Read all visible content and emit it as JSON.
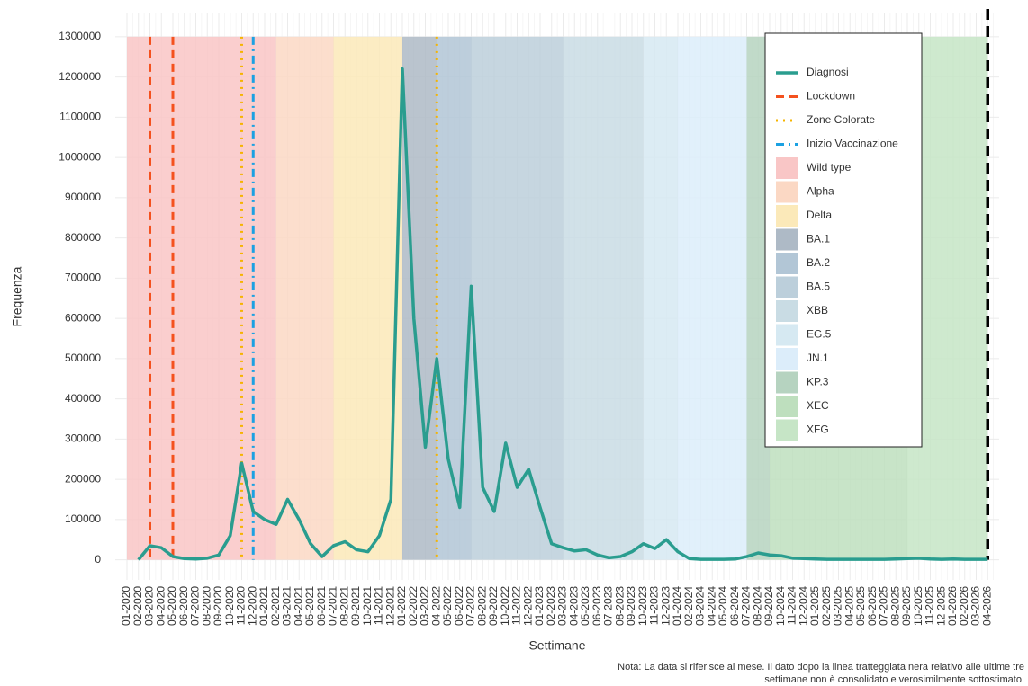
{
  "chart_data": {
    "type": "line",
    "ylabel": "Frequenza",
    "xlabel": "Settimane",
    "note": [
      "Nota: La data si riferisce al mese. Il dato dopo la linea tratteggiata nera relativo alle ultime tre",
      "settimane non è consolidato e verosimilmente sottostimato."
    ],
    "categories": [
      "01-2020",
      "02-2020",
      "03-2020",
      "04-2020",
      "05-2020",
      "06-2020",
      "07-2020",
      "08-2020",
      "09-2020",
      "10-2020",
      "11-2020",
      "12-2020",
      "01-2021",
      "02-2021",
      "03-2021",
      "04-2021",
      "05-2021",
      "06-2021",
      "07-2021",
      "08-2021",
      "09-2021",
      "10-2021",
      "11-2021",
      "12-2021",
      "01-2022",
      "02-2022",
      "03-2022",
      "04-2022",
      "05-2022",
      "06-2022",
      "07-2022",
      "08-2022",
      "09-2022",
      "10-2022",
      "11-2022",
      "12-2022",
      "01-2023",
      "02-2023",
      "03-2023",
      "04-2023",
      "05-2023",
      "06-2023",
      "07-2023",
      "08-2023",
      "09-2023",
      "10-2023",
      "11-2023",
      "12-2023",
      "01-2024",
      "02-2024",
      "03-2024",
      "04-2024",
      "05-2024",
      "06-2024",
      "07-2024",
      "08-2024",
      "09-2024",
      "10-2024",
      "11-2024",
      "12-2024",
      "01-2025",
      "02-2025",
      "03-2025",
      "04-2025",
      "05-2025",
      "06-2025",
      "07-2025",
      "08-2025",
      "09-2025",
      "10-2025",
      "11-2025",
      "12-2025",
      "01-2026",
      "02-2026",
      "03-2026",
      "04-2026"
    ],
    "series": [
      {
        "name": "Diagnosi",
        "color": "#2a9d8f",
        "values": [
          null,
          0,
          35000,
          30000,
          8000,
          3000,
          2000,
          4000,
          12000,
          60000,
          240000,
          120000,
          100000,
          88000,
          150000,
          100000,
          40000,
          8000,
          35000,
          45000,
          25000,
          20000,
          60000,
          150000,
          1220000,
          600000,
          280000,
          500000,
          250000,
          130000,
          680000,
          180000,
          120000,
          290000,
          180000,
          225000,
          130000,
          40000,
          30000,
          22000,
          25000,
          12000,
          5000,
          8000,
          20000,
          40000,
          28000,
          50000,
          20000,
          3000,
          1000,
          1000,
          1000,
          2000,
          8000,
          17000,
          12000,
          10000,
          4000,
          3000,
          2000,
          1000,
          1000,
          1000,
          1000,
          1000,
          1000,
          2000,
          3000,
          4000,
          2000,
          1000,
          2000,
          1000,
          1000,
          1000
        ]
      }
    ],
    "events": [
      {
        "name": "Lockdown",
        "color": "#f4511e",
        "dash": "9 6",
        "at": [
          "03-2020",
          "05-2020"
        ]
      },
      {
        "name": "Zone Colorate",
        "color": "#f6b400",
        "dash": "2 6",
        "at": [
          "11-2020",
          "04-2022"
        ]
      },
      {
        "name": "Inizio Vaccinazione",
        "color": "#1ba1e2",
        "dash": "9 5 2 5",
        "at": [
          "12-2020"
        ]
      }
    ],
    "cutoff": "04-2026",
    "variants": [
      {
        "name": "Wild type",
        "color": "#f9c6c6",
        "from": "01-2020",
        "to": "02-2021"
      },
      {
        "name": "Alpha",
        "color": "#fbd8c4",
        "from": "02-2021",
        "to": "07-2021"
      },
      {
        "name": "Delta",
        "color": "#fbe9b9",
        "from": "07-2021",
        "to": "01-2022"
      },
      {
        "name": "BA.1",
        "color": "#aebac6",
        "from": "01-2022",
        "to": "04-2022"
      },
      {
        "name": "BA.2",
        "color": "#b2c6d6",
        "from": "04-2022",
        "to": "07-2022"
      },
      {
        "name": "BA.5",
        "color": "#bccfdb",
        "from": "07-2022",
        "to": "03-2023"
      },
      {
        "name": "XBB",
        "color": "#c9dce4",
        "from": "03-2023",
        "to": "10-2023"
      },
      {
        "name": "EG.5",
        "color": "#d6e9f2",
        "from": "10-2023",
        "to": "01-2024"
      },
      {
        "name": "JN.1",
        "color": "#dcedfa",
        "from": "01-2024",
        "to": "07-2024"
      },
      {
        "name": "KP.3",
        "color": "#b6d3c0",
        "from": "07-2024",
        "to": "09-2024"
      },
      {
        "name": "XEC",
        "color": "#bedfbe",
        "from": "09-2024",
        "to": "09-2025"
      },
      {
        "name": "XFG",
        "color": "#c6e5c6",
        "from": "09-2025",
        "to": "04-2026"
      }
    ],
    "ylim": [
      -50000,
      1360000
    ],
    "yticks": [
      0,
      100000,
      200000,
      300000,
      400000,
      500000,
      600000,
      700000,
      800000,
      900000,
      1000000,
      1100000,
      1200000,
      1300000
    ],
    "grid": true
  }
}
